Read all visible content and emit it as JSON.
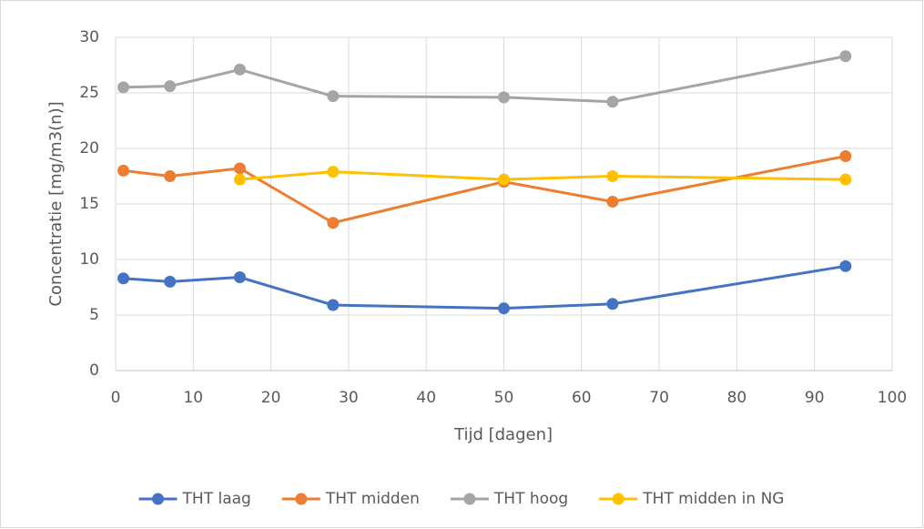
{
  "chart_data": {
    "type": "line",
    "x_label": "Tijd [dagen]",
    "y_label": "Concentratie [mg/m3(n)]",
    "x": [
      1,
      7,
      16,
      28,
      50,
      64,
      94
    ],
    "series": [
      {
        "name": "THT laag",
        "color": "#4472c4",
        "values": [
          8.3,
          8.0,
          8.4,
          5.9,
          5.6,
          6.0,
          9.4
        ]
      },
      {
        "name": "THT midden",
        "color": "#ed7d31",
        "values": [
          18.0,
          17.5,
          18.2,
          13.3,
          17.0,
          15.2,
          19.3
        ]
      },
      {
        "name": "THT hoog",
        "color": "#a5a5a5",
        "values": [
          25.5,
          25.6,
          27.1,
          24.7,
          24.6,
          24.2,
          28.3
        ]
      },
      {
        "name": "THT midden in NG",
        "color": "#ffc000",
        "values": [
          null,
          null,
          17.2,
          17.9,
          17.2,
          17.5,
          17.2
        ]
      }
    ],
    "xlim": [
      0,
      100
    ],
    "xticks": [
      0,
      10,
      20,
      30,
      40,
      50,
      60,
      70,
      80,
      90,
      100
    ],
    "ylim": [
      0,
      30
    ],
    "yticks": [
      0,
      5,
      10,
      15,
      20,
      25,
      30
    ],
    "grid": true,
    "legend": "bottom"
  }
}
